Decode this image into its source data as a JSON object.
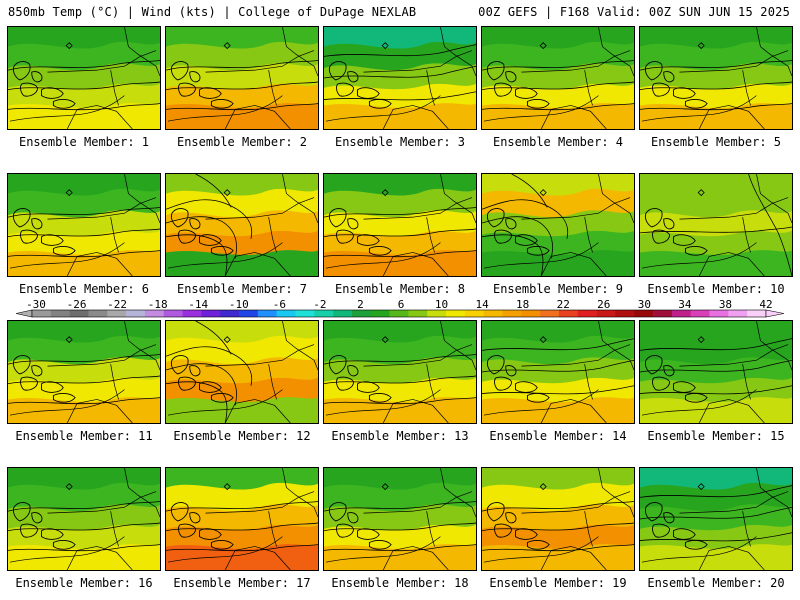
{
  "header": {
    "title_left": "850mb Temp (°C) | Wind (kts) | College of DuPage NEXLAB",
    "title_right": "00Z GEFS | F168 Valid: 00Z SUN JUN 15 2025"
  },
  "members": [
    {
      "label": "Ensemble Member: 1",
      "field": [
        "#27a51f",
        "#3cb520",
        "#86c814",
        "#c8dd0c",
        "#f0e800"
      ],
      "front": "mid"
    },
    {
      "label": "Ensemble Member: 2",
      "field": [
        "#3cb520",
        "#86c814",
        "#c8dd0c",
        "#f4b800",
        "#f39000"
      ],
      "front": "mid"
    },
    {
      "label": "Ensemble Member: 3",
      "field": [
        "#12b87a",
        "#27a51f",
        "#86c814",
        "#f0e800",
        "#f4b800"
      ],
      "front": "high"
    },
    {
      "label": "Ensemble Member: 4",
      "field": [
        "#27a51f",
        "#3cb520",
        "#86c814",
        "#f0e800",
        "#f4b800"
      ],
      "front": "mid"
    },
    {
      "label": "Ensemble Member: 5",
      "field": [
        "#27a51f",
        "#3cb520",
        "#86c814",
        "#f0e800",
        "#f4b800"
      ],
      "front": "mid"
    },
    {
      "label": "Ensemble Member: 6",
      "field": [
        "#27a51f",
        "#3cb520",
        "#c8dd0c",
        "#f0e800",
        "#f4b800"
      ],
      "front": "mid"
    },
    {
      "label": "Ensemble Member: 7",
      "field": [
        "#86c814",
        "#f0e800",
        "#f4b800",
        "#f39000",
        "#27a51f"
      ],
      "front": "cold"
    },
    {
      "label": "Ensemble Member: 8",
      "field": [
        "#27a51f",
        "#86c814",
        "#f0e800",
        "#f4b800",
        "#f39000"
      ],
      "front": "mid"
    },
    {
      "label": "Ensemble Member: 9",
      "field": [
        "#c8dd0c",
        "#f4b800",
        "#86c814",
        "#3cb520",
        "#27a51f"
      ],
      "front": "cold"
    },
    {
      "label": "Ensemble Member: 10",
      "field": [
        "#86c814",
        "#86c814",
        "#c8dd0c",
        "#86c814",
        "#3cb520"
      ],
      "front": "none"
    },
    {
      "label": "Ensemble Member: 11",
      "field": [
        "#27a51f",
        "#3cb520",
        "#c8dd0c",
        "#f0e800",
        "#f4b800"
      ],
      "front": "mid"
    },
    {
      "label": "Ensemble Member: 12",
      "field": [
        "#c8dd0c",
        "#f0e800",
        "#f4b800",
        "#f39000",
        "#86c814"
      ],
      "front": "cold"
    },
    {
      "label": "Ensemble Member: 13",
      "field": [
        "#27a51f",
        "#3cb520",
        "#86c814",
        "#f0e800",
        "#f4b800"
      ],
      "front": "mid"
    },
    {
      "label": "Ensemble Member: 14",
      "field": [
        "#27a51f",
        "#3cb520",
        "#86c814",
        "#f0e800",
        "#f4b800"
      ],
      "front": "high"
    },
    {
      "label": "Ensemble Member: 15",
      "field": [
        "#27a51f",
        "#27a51f",
        "#3cb520",
        "#86c814",
        "#c8dd0c"
      ],
      "front": "high"
    },
    {
      "label": "Ensemble Member: 16",
      "field": [
        "#27a51f",
        "#3cb520",
        "#86c814",
        "#c8dd0c",
        "#f0e800"
      ],
      "front": "mid"
    },
    {
      "label": "Ensemble Member: 17",
      "field": [
        "#3cb520",
        "#f0e800",
        "#f4b800",
        "#f39000",
        "#f06010"
      ],
      "front": "mid"
    },
    {
      "label": "Ensemble Member: 18",
      "field": [
        "#27a51f",
        "#3cb520",
        "#86c814",
        "#f0e800",
        "#f4b800"
      ],
      "front": "mid"
    },
    {
      "label": "Ensemble Member: 19",
      "field": [
        "#86c814",
        "#f0e800",
        "#f4b800",
        "#f39000",
        "#f4b800"
      ],
      "front": "mid"
    },
    {
      "label": "Ensemble Member: 20",
      "field": [
        "#12b87a",
        "#27a51f",
        "#3cb520",
        "#86c814",
        "#c8dd0c"
      ],
      "front": "high"
    }
  ],
  "colorbar": {
    "labels": [
      "-30",
      "-26",
      "-22",
      "-18",
      "-14",
      "-10",
      "-6",
      "-2",
      "2",
      "6",
      "10",
      "14",
      "18",
      "22",
      "26",
      "30",
      "34",
      "38",
      "42"
    ],
    "colors": [
      "#9a9a9a",
      "#828282",
      "#6e6e6e",
      "#8a8a8a",
      "#a8a8a8",
      "#b4b4d8",
      "#c48ce0",
      "#b05ae0",
      "#9b30e0",
      "#7020d8",
      "#4028d0",
      "#2046e8",
      "#1e90ff",
      "#18c8f0",
      "#20e0d8",
      "#18d0a8",
      "#12b87a",
      "#1ea03c",
      "#27a51f",
      "#56b81a",
      "#86c814",
      "#c8dd0c",
      "#f0e800",
      "#f8d000",
      "#f4b800",
      "#f3a000",
      "#f39000",
      "#f07020",
      "#e84020",
      "#e02020",
      "#c81818",
      "#b01010",
      "#980a0a",
      "#a0103c",
      "#c0208c",
      "#d840b8",
      "#e870e0",
      "#f0a0f0",
      "#f8d0f8"
    ]
  }
}
